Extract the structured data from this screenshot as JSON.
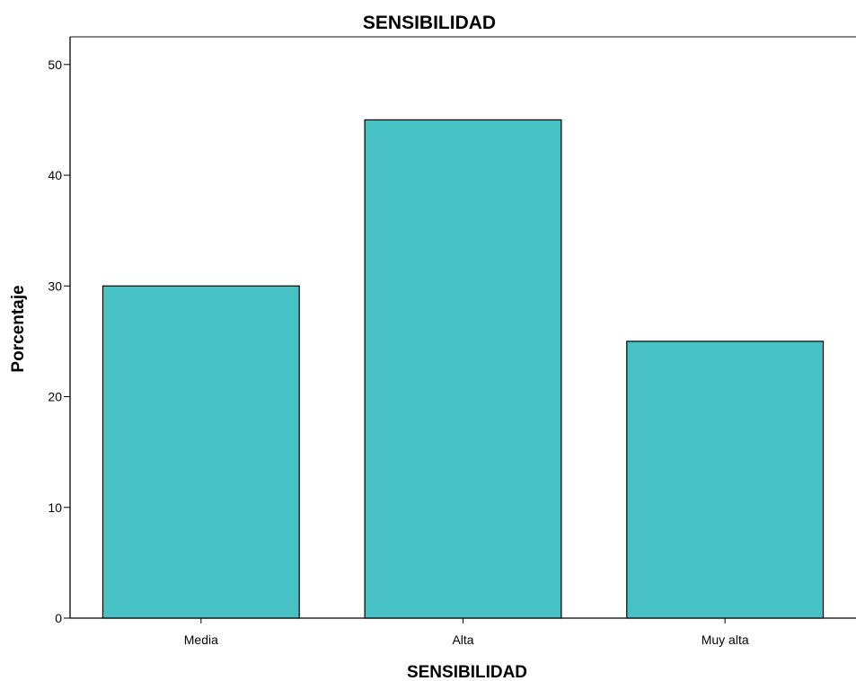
{
  "chart_data": {
    "type": "bar",
    "title": "SENSIBILIDAD",
    "xlabel": "SENSIBILIDAD",
    "ylabel": "Porcentaje",
    "categories": [
      "Media",
      "Alta",
      "Muy alta"
    ],
    "values": [
      30,
      45,
      25
    ],
    "ylim": [
      0,
      52.5
    ],
    "yticks": [
      0,
      10,
      20,
      30,
      40,
      50
    ],
    "grid": false,
    "bar_color": "#48c1c4",
    "bar_edge_color": "#000000"
  }
}
